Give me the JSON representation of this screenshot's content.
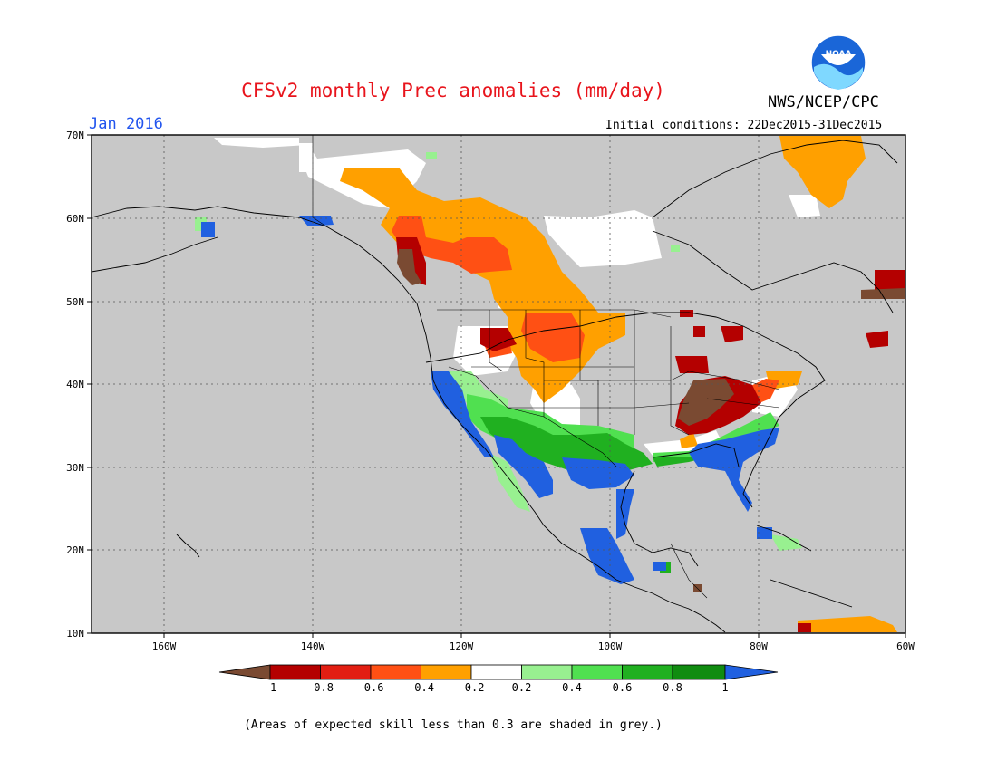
{
  "header": {
    "title": "CFSv2 monthly Prec anomalies (mm/day)",
    "month": "Jan 2016",
    "agency": "NWS/NCEP/CPC",
    "initial_conditions": "Initial conditions: 22Dec2015-31Dec2015",
    "logo_text": "NOAA"
  },
  "map": {
    "lat_labels": [
      "70N",
      "60N",
      "50N",
      "40N",
      "30N",
      "20N",
      "10N"
    ],
    "lon_labels": [
      "160W",
      "140W",
      "120W",
      "100W",
      "80W",
      "60W"
    ],
    "lat_range": [
      10,
      70
    ],
    "lon_range": [
      -172,
      -60
    ],
    "grid": "dotted",
    "background_color": "#c8c8c8"
  },
  "legend": {
    "labels": [
      "-1",
      "-0.8",
      "-0.6",
      "-0.4",
      "-0.2",
      "0.2",
      "0.4",
      "0.6",
      "0.8",
      "1"
    ],
    "colors": [
      "#7a4a32",
      "#b40000",
      "#e21e12",
      "#ff5014",
      "#ffa000",
      "#ffffff",
      "#98f090",
      "#50e050",
      "#20b020",
      "#108c10",
      "#2060e0"
    ]
  },
  "note": "(Areas of expected skill less than 0.3 are shaded in grey.)"
}
